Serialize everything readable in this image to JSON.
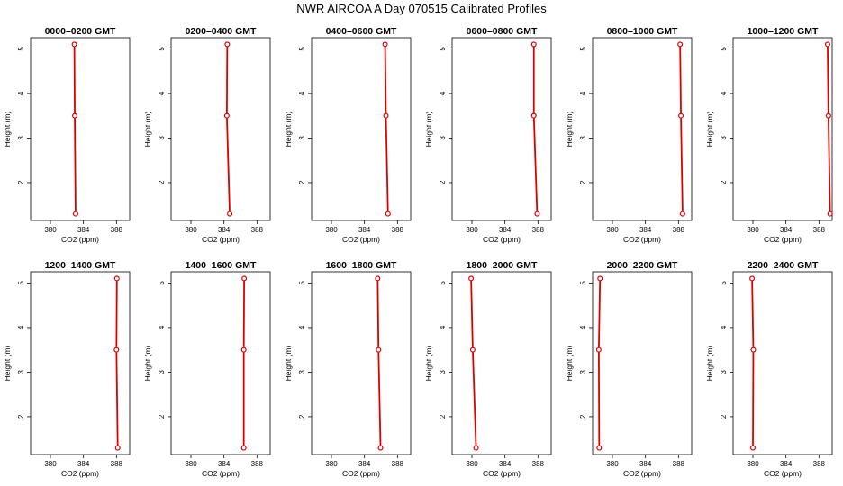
{
  "figure": {
    "title": "NWR AIRCOA A  Day 070515  Calibrated Profiles"
  },
  "colors": {
    "profile": "#dd0000",
    "axes": "#000000"
  },
  "chart_data": [
    {
      "type": "line",
      "title": "0000–0200 GMT",
      "xlabel": "CO2 (ppm)",
      "ylabel": "Height (m)",
      "xlim": [
        377.6,
        389.6
      ],
      "ylim": [
        1.15,
        5.25
      ],
      "xticks": [
        380,
        384,
        388
      ],
      "yticks": [
        2,
        3,
        4,
        5
      ],
      "series": [
        {
          "x": [
            383.05,
            382.95,
            382.9
          ],
          "y": [
            1.3,
            3.5,
            5.1
          ]
        }
      ]
    },
    {
      "type": "line",
      "title": "0200–0400 GMT",
      "xlabel": "CO2 (ppm)",
      "ylabel": "Height (m)",
      "xlim": [
        377.6,
        389.6
      ],
      "ylim": [
        1.15,
        5.25
      ],
      "xticks": [
        380,
        384,
        388
      ],
      "yticks": [
        2,
        3,
        4,
        5
      ],
      "series": [
        {
          "x": [
            384.7,
            384.35,
            384.4
          ],
          "y": [
            1.3,
            3.5,
            5.1
          ]
        }
      ]
    },
    {
      "type": "line",
      "title": "0400–0600 GMT",
      "xlabel": "CO2 (ppm)",
      "ylabel": "Height (m)",
      "xlim": [
        377.6,
        389.6
      ],
      "ylim": [
        1.15,
        5.25
      ],
      "xticks": [
        380,
        384,
        388
      ],
      "yticks": [
        2,
        3,
        4,
        5
      ],
      "series": [
        {
          "x": [
            386.85,
            386.6,
            386.5
          ],
          "y": [
            1.3,
            3.5,
            5.1
          ]
        }
      ]
    },
    {
      "type": "line",
      "title": "0600–0800 GMT",
      "xlabel": "CO2 (ppm)",
      "ylabel": "Height (m)",
      "xlim": [
        377.6,
        389.6
      ],
      "ylim": [
        1.15,
        5.25
      ],
      "xticks": [
        380,
        384,
        388
      ],
      "yticks": [
        2,
        3,
        4,
        5
      ],
      "series": [
        {
          "x": [
            387.9,
            387.5,
            387.5
          ],
          "y": [
            1.3,
            3.5,
            5.1
          ]
        }
      ]
    },
    {
      "type": "line",
      "title": "0800–1000 GMT",
      "xlabel": "CO2 (ppm)",
      "ylabel": "Height (m)",
      "xlim": [
        377.6,
        389.6
      ],
      "ylim": [
        1.15,
        5.25
      ],
      "xticks": [
        380,
        384,
        388
      ],
      "yticks": [
        2,
        3,
        4,
        5
      ],
      "series": [
        {
          "x": [
            388.5,
            388.3,
            388.2
          ],
          "y": [
            1.3,
            3.5,
            5.1
          ]
        }
      ]
    },
    {
      "type": "line",
      "title": "1000–1200 GMT",
      "xlabel": "CO2 (ppm)",
      "ylabel": "Height (m)",
      "xlim": [
        377.6,
        389.6
      ],
      "ylim": [
        1.15,
        5.25
      ],
      "xticks": [
        380,
        384,
        388
      ],
      "yticks": [
        2,
        3,
        4,
        5
      ],
      "series": [
        {
          "x": [
            389.35,
            389.15,
            389.05
          ],
          "y": [
            1.3,
            3.5,
            5.1
          ]
        }
      ]
    },
    {
      "type": "line",
      "title": "1200–1400 GMT",
      "xlabel": "CO2 (ppm)",
      "ylabel": "Height (m)",
      "xlim": [
        377.6,
        389.6
      ],
      "ylim": [
        1.15,
        5.25
      ],
      "xticks": [
        380,
        384,
        388
      ],
      "yticks": [
        2,
        3,
        4,
        5
      ],
      "series": [
        {
          "x": [
            388.15,
            388.0,
            388.05
          ],
          "y": [
            1.3,
            3.5,
            5.1
          ]
        }
      ]
    },
    {
      "type": "line",
      "title": "1400–1600 GMT",
      "xlabel": "CO2 (ppm)",
      "ylabel": "Height (m)",
      "xlim": [
        377.6,
        389.6
      ],
      "ylim": [
        1.15,
        5.25
      ],
      "xticks": [
        380,
        384,
        388
      ],
      "yticks": [
        2,
        3,
        4,
        5
      ],
      "series": [
        {
          "x": [
            386.4,
            386.4,
            386.45
          ],
          "y": [
            1.3,
            3.5,
            5.1
          ]
        }
      ]
    },
    {
      "type": "line",
      "title": "1600–1800 GMT",
      "xlabel": "CO2 (ppm)",
      "ylabel": "Height (m)",
      "xlim": [
        377.6,
        389.6
      ],
      "ylim": [
        1.15,
        5.25
      ],
      "xticks": [
        380,
        384,
        388
      ],
      "yticks": [
        2,
        3,
        4,
        5
      ],
      "series": [
        {
          "x": [
            385.95,
            385.7,
            385.6
          ],
          "y": [
            1.3,
            3.5,
            5.1
          ]
        }
      ]
    },
    {
      "type": "line",
      "title": "1800–2000 GMT",
      "xlabel": "CO2 (ppm)",
      "ylabel": "Height (m)",
      "xlim": [
        377.6,
        389.6
      ],
      "ylim": [
        1.15,
        5.25
      ],
      "xticks": [
        380,
        384,
        388
      ],
      "yticks": [
        2,
        3,
        4,
        5
      ],
      "series": [
        {
          "x": [
            380.5,
            380.1,
            379.9
          ],
          "y": [
            1.3,
            3.5,
            5.1
          ]
        }
      ]
    },
    {
      "type": "line",
      "title": "2000–2200 GMT",
      "xlabel": "CO2 (ppm)",
      "ylabel": "Height (m)",
      "xlim": [
        377.6,
        389.6
      ],
      "ylim": [
        1.15,
        5.25
      ],
      "xticks": [
        380,
        384,
        388
      ],
      "yticks": [
        2,
        3,
        4,
        5
      ],
      "series": [
        {
          "x": [
            378.4,
            378.35,
            378.5
          ],
          "y": [
            1.3,
            3.5,
            5.1
          ]
        }
      ]
    },
    {
      "type": "line",
      "title": "2200–2400 GMT",
      "xlabel": "CO2 (ppm)",
      "ylabel": "Height (m)",
      "xlim": [
        377.6,
        389.6
      ],
      "ylim": [
        1.15,
        5.25
      ],
      "xticks": [
        380,
        384,
        388
      ],
      "yticks": [
        2,
        3,
        4,
        5
      ],
      "series": [
        {
          "x": [
            380.0,
            380.05,
            379.9
          ],
          "y": [
            1.3,
            3.5,
            5.1
          ]
        }
      ]
    }
  ]
}
